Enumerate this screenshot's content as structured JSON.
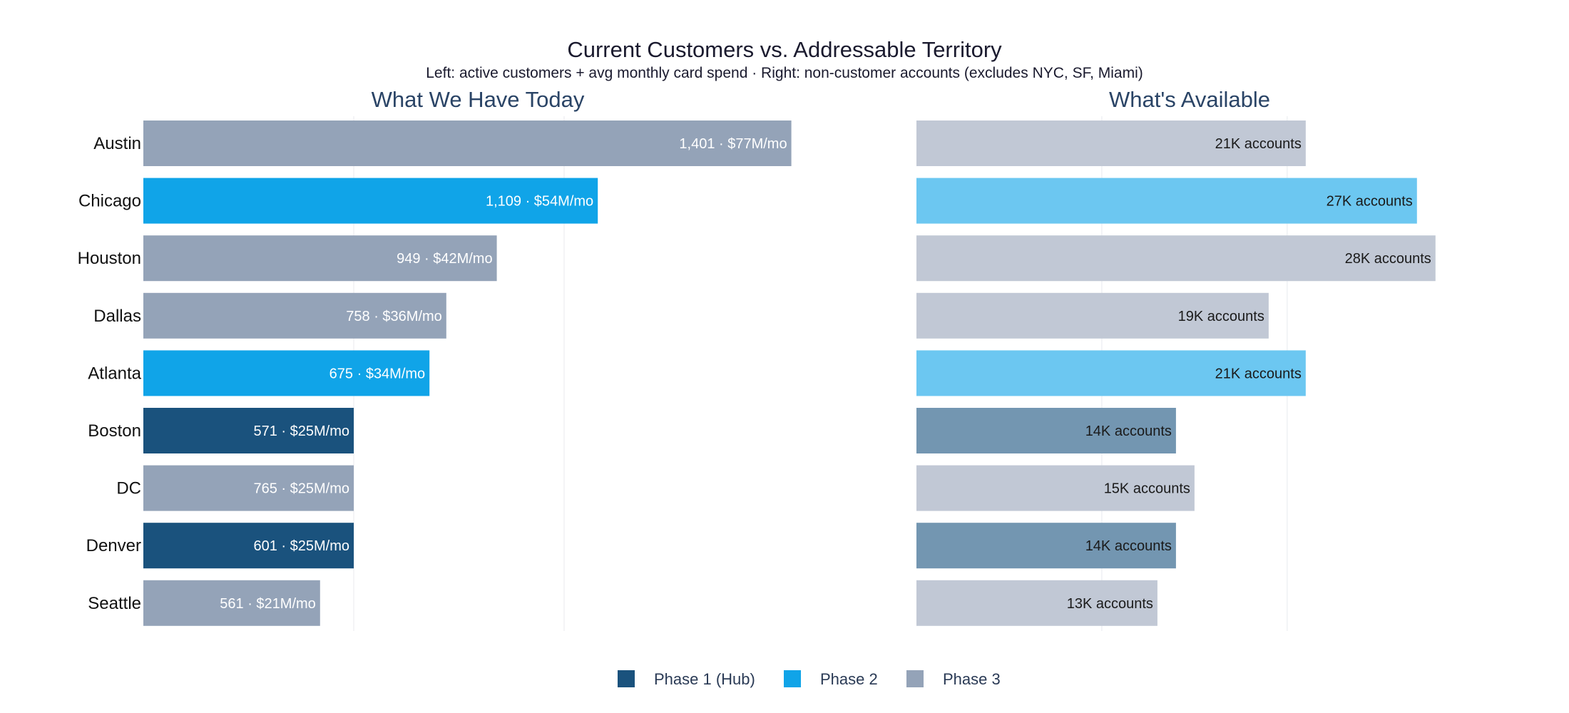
{
  "chart_data": {
    "type": "bar",
    "orientation": "horizontal",
    "title": "Current Customers vs. Addressable Territory",
    "subtitle": "Left: active customers + avg monthly card spend · Right: non-customer accounts (excludes NYC, SF, Miami)",
    "categories": [
      "Austin",
      "Chicago",
      "Houston",
      "Dallas",
      "Atlanta",
      "Boston",
      "DC",
      "Denver",
      "Seattle"
    ],
    "phase_index": [
      3,
      2,
      3,
      3,
      2,
      1,
      3,
      1,
      3
    ],
    "panels": [
      {
        "title": "What We Have Today",
        "metric": "avg monthly card spend ($M/mo)",
        "xlim": [
          0,
          85
        ],
        "grid_values": [
          25,
          50
        ],
        "values": [
          77,
          54,
          42,
          36,
          34,
          25,
          25,
          25,
          21
        ],
        "customers": [
          1401,
          1109,
          949,
          758,
          675,
          571,
          765,
          601,
          561
        ],
        "labels": [
          "1,401 · $77M/mo",
          "1,109 · $54M/mo",
          "949 · $42M/mo",
          "758 · $36M/mo",
          "675 · $34M/mo",
          "571 · $25M/mo",
          "765 · $25M/mo",
          "601 · $25M/mo",
          "561 · $21M/mo"
        ]
      },
      {
        "title": "What's Available",
        "metric": "non-customer accounts (K)",
        "xlim": [
          0,
          28.2
        ],
        "grid_values": [
          10,
          20
        ],
        "values": [
          21,
          27,
          28,
          19,
          21,
          14,
          15,
          14,
          13
        ],
        "labels": [
          "21K accounts",
          "27K accounts",
          "28K accounts",
          "19K accounts",
          "21K accounts",
          "14K accounts",
          "15K accounts",
          "14K accounts",
          "13K accounts"
        ]
      }
    ],
    "legend": {
      "position": "bottom-center",
      "entries": [
        {
          "name": "Phase 1 (Hub)",
          "color": "#1a527d"
        },
        {
          "name": "Phase 2",
          "color": "#10a4e8"
        },
        {
          "name": "Phase 3",
          "color": "#94a3b8"
        }
      ]
    },
    "colors": {
      "left": {
        "1": "#1a527d",
        "2": "#10a4e8",
        "3": "#94a3b8"
      },
      "right": {
        "1": "#7396b1",
        "2": "#6cc7f1",
        "3": "#c1c8d5"
      },
      "left_label": "#ffffff",
      "right_label": "#1a1a1a",
      "title": "#1a1a2e",
      "panel_title": "#2a4466",
      "grid": "#e8eaee"
    }
  }
}
